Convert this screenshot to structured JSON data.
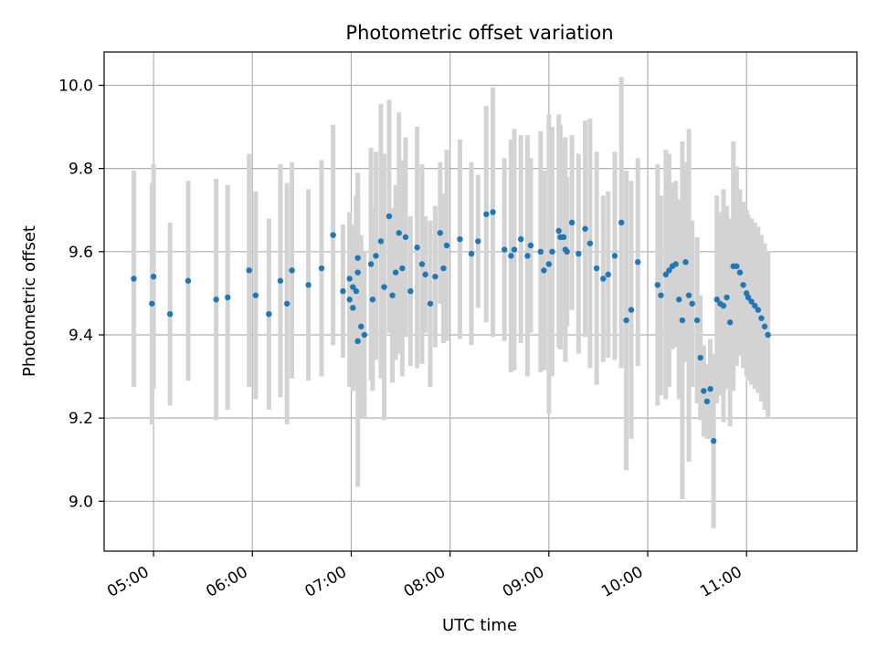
{
  "chart_data": {
    "type": "scatter",
    "title": "Photometric offset variation",
    "xlabel": "UTC time",
    "ylabel": "Photometric offset",
    "x_unit": "HH:MM UTC",
    "xlim": [
      "04:30",
      "12:07"
    ],
    "ylim": [
      8.88,
      10.08
    ],
    "x_ticks": [
      "05:00",
      "06:00",
      "07:00",
      "08:00",
      "09:00",
      "10:00",
      "11:00"
    ],
    "y_ticks": [
      9.0,
      9.2,
      9.4,
      9.6,
      9.8,
      10.0
    ],
    "y_tick_labels": [
      "9.0",
      "9.2",
      "9.4",
      "9.6",
      "9.8",
      "10.0"
    ],
    "grid": true,
    "colors": {
      "marker": "#1f77b4",
      "errorbar": "#d3d3d3",
      "grid": "#b0b0b0"
    },
    "series": [
      {
        "x": [
          "04:48",
          "05:00",
          "04:59",
          "05:10",
          "05:21",
          "05:38",
          "05:45",
          "05:58",
          "06:02",
          "06:10",
          "06:17",
          "06:21",
          "06:24",
          "06:34",
          "06:42",
          "06:49",
          "06:55",
          "06:59",
          "06:59",
          "07:01",
          "07:01",
          "07:03",
          "07:04",
          "07:04",
          "07:04",
          "07:06",
          "07:08",
          "07:12",
          "07:13",
          "07:15",
          "07:18",
          "07:20",
          "07:23",
          "07:25",
          "07:27",
          "07:29",
          "07:31",
          "07:33",
          "07:36",
          "07:40",
          "07:43",
          "07:45",
          "07:48",
          "07:51",
          "07:54",
          "07:56",
          "07:58",
          "08:06",
          "08:13",
          "08:17",
          "08:22",
          "08:26",
          "08:33",
          "08:37",
          "08:39",
          "08:43",
          "08:47",
          "08:49",
          "08:55",
          "08:57",
          "09:00",
          "09:02",
          "09:06",
          "09:07",
          "09:09",
          "09:10",
          "09:11",
          "09:14",
          "09:18",
          "09:22",
          "09:25",
          "09:29",
          "09:33",
          "09:36",
          "09:40",
          "09:44",
          "09:47",
          "09:50",
          "09:54",
          "10:06",
          "10:08",
          "10:11",
          "10:13",
          "10:15",
          "10:17",
          "10:19",
          "10:21",
          "10:23",
          "10:25",
          "10:27",
          "10:30",
          "10:32",
          "10:34",
          "10:36",
          "10:38",
          "10:40",
          "10:42",
          "10:44",
          "10:46",
          "10:48",
          "10:50",
          "10:52",
          "10:54",
          "10:56",
          "10:58",
          "11:00",
          "11:01",
          "11:03",
          "11:05",
          "11:07",
          "11:09",
          "11:11",
          "11:13"
        ],
        "y": [
          9.535,
          9.54,
          9.475,
          9.45,
          9.53,
          9.485,
          9.49,
          9.555,
          9.495,
          9.45,
          9.53,
          9.475,
          9.555,
          9.52,
          9.56,
          9.64,
          9.505,
          9.485,
          9.535,
          9.515,
          9.465,
          9.505,
          9.585,
          9.55,
          9.385,
          9.42,
          9.4,
          9.57,
          9.485,
          9.59,
          9.625,
          9.515,
          9.685,
          9.495,
          9.55,
          9.645,
          9.56,
          9.635,
          9.505,
          9.61,
          9.57,
          9.545,
          9.475,
          9.54,
          9.645,
          9.56,
          9.615,
          9.63,
          9.595,
          9.625,
          9.69,
          9.695,
          9.605,
          9.59,
          9.605,
          9.63,
          9.59,
          9.615,
          9.6,
          9.555,
          9.57,
          9.6,
          9.65,
          9.635,
          9.635,
          9.605,
          9.6,
          9.67,
          9.595,
          9.655,
          9.62,
          9.56,
          9.535,
          9.545,
          9.59,
          9.67,
          9.435,
          9.46,
          9.575,
          9.52,
          9.495,
          9.545,
          9.555,
          9.565,
          9.57,
          9.485,
          9.435,
          9.575,
          9.495,
          9.475,
          9.435,
          9.345,
          9.265,
          9.24,
          9.27,
          9.145,
          9.485,
          9.475,
          9.47,
          9.49,
          9.43,
          9.565,
          9.565,
          9.55,
          9.52,
          9.5,
          9.49,
          9.48,
          9.47,
          9.46,
          9.44,
          9.42,
          9.4
        ],
        "yerr": [
          0.26,
          0.27,
          0.29,
          0.22,
          0.24,
          0.29,
          0.27,
          0.28,
          0.25,
          0.23,
          0.28,
          0.29,
          0.26,
          0.23,
          0.26,
          0.265,
          0.16,
          0.21,
          0.16,
          0.14,
          0.2,
          0.23,
          0.2,
          0.24,
          0.35,
          0.22,
          0.2,
          0.28,
          0.22,
          0.25,
          0.33,
          0.32,
          0.28,
          0.21,
          0.21,
          0.29,
          0.26,
          0.24,
          0.18,
          0.29,
          0.24,
          0.14,
          0.2,
          0.17,
          0.17,
          0.18,
          0.23,
          0.24,
          0.22,
          0.16,
          0.26,
          0.3,
          0.22,
          0.28,
          0.29,
          0.25,
          0.29,
          0.21,
          0.29,
          0.24,
          0.36,
          0.3,
          0.28,
          0.27,
          0.23,
          0.27,
          0.18,
          0.21,
          0.24,
          0.26,
          0.3,
          0.28,
          0.2,
          0.2,
          0.25,
          0.35,
          0.36,
          0.31,
          0.25,
          0.29,
          0.24,
          0.3,
          0.28,
          0.2,
          0.2,
          0.24,
          0.43,
          0.24,
          0.4,
          0.2,
          0.2,
          0.15,
          0.11,
          0.09,
          0.12,
          0.21,
          0.25,
          0.22,
          0.28,
          0.22,
          0.25,
          0.3,
          0.24,
          0.2,
          0.2,
          0.2,
          0.2,
          0.2,
          0.2,
          0.2,
          0.2,
          0.2,
          0.2
        ]
      }
    ]
  }
}
